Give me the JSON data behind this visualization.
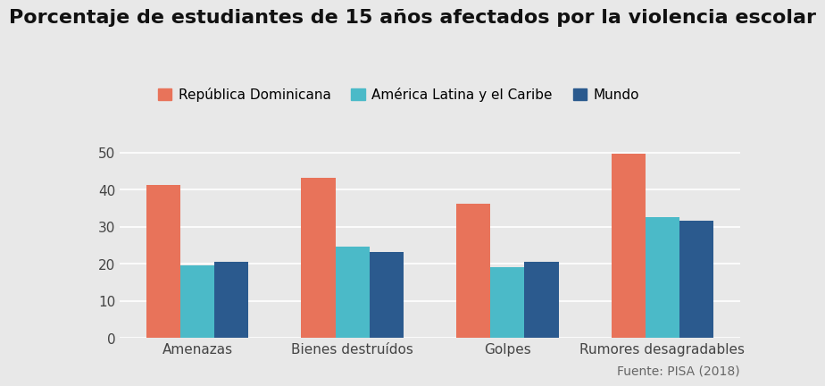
{
  "title": "Porcentaje de estudiantes de 15 años afectados por la violencia escolar",
  "categories": [
    "Amenazas",
    "Bienes destruídos",
    "Golpes",
    "Rumores desagradables"
  ],
  "series": [
    {
      "label": "República Dominicana",
      "color": "#E8735A",
      "values": [
        41.2,
        43.2,
        36.2,
        49.6
      ]
    },
    {
      "label": "América Latina y el Caribe",
      "color": "#4BBAC8",
      "values": [
        19.6,
        24.5,
        19.0,
        32.5
      ]
    },
    {
      "label": "Mundo",
      "color": "#2B5A8E",
      "values": [
        20.5,
        23.2,
        20.6,
        31.5
      ]
    }
  ],
  "ylim": [
    0,
    55
  ],
  "yticks": [
    0,
    10,
    20,
    30,
    40,
    50
  ],
  "background_color": "#E8E8E8",
  "plot_bg_color": "#E8E8E8",
  "grid_color": "#FFFFFF",
  "source_text": "Fuente: PISA (2018)",
  "title_fontsize": 16,
  "legend_fontsize": 11,
  "tick_fontsize": 11,
  "source_fontsize": 10,
  "bar_width": 0.22
}
